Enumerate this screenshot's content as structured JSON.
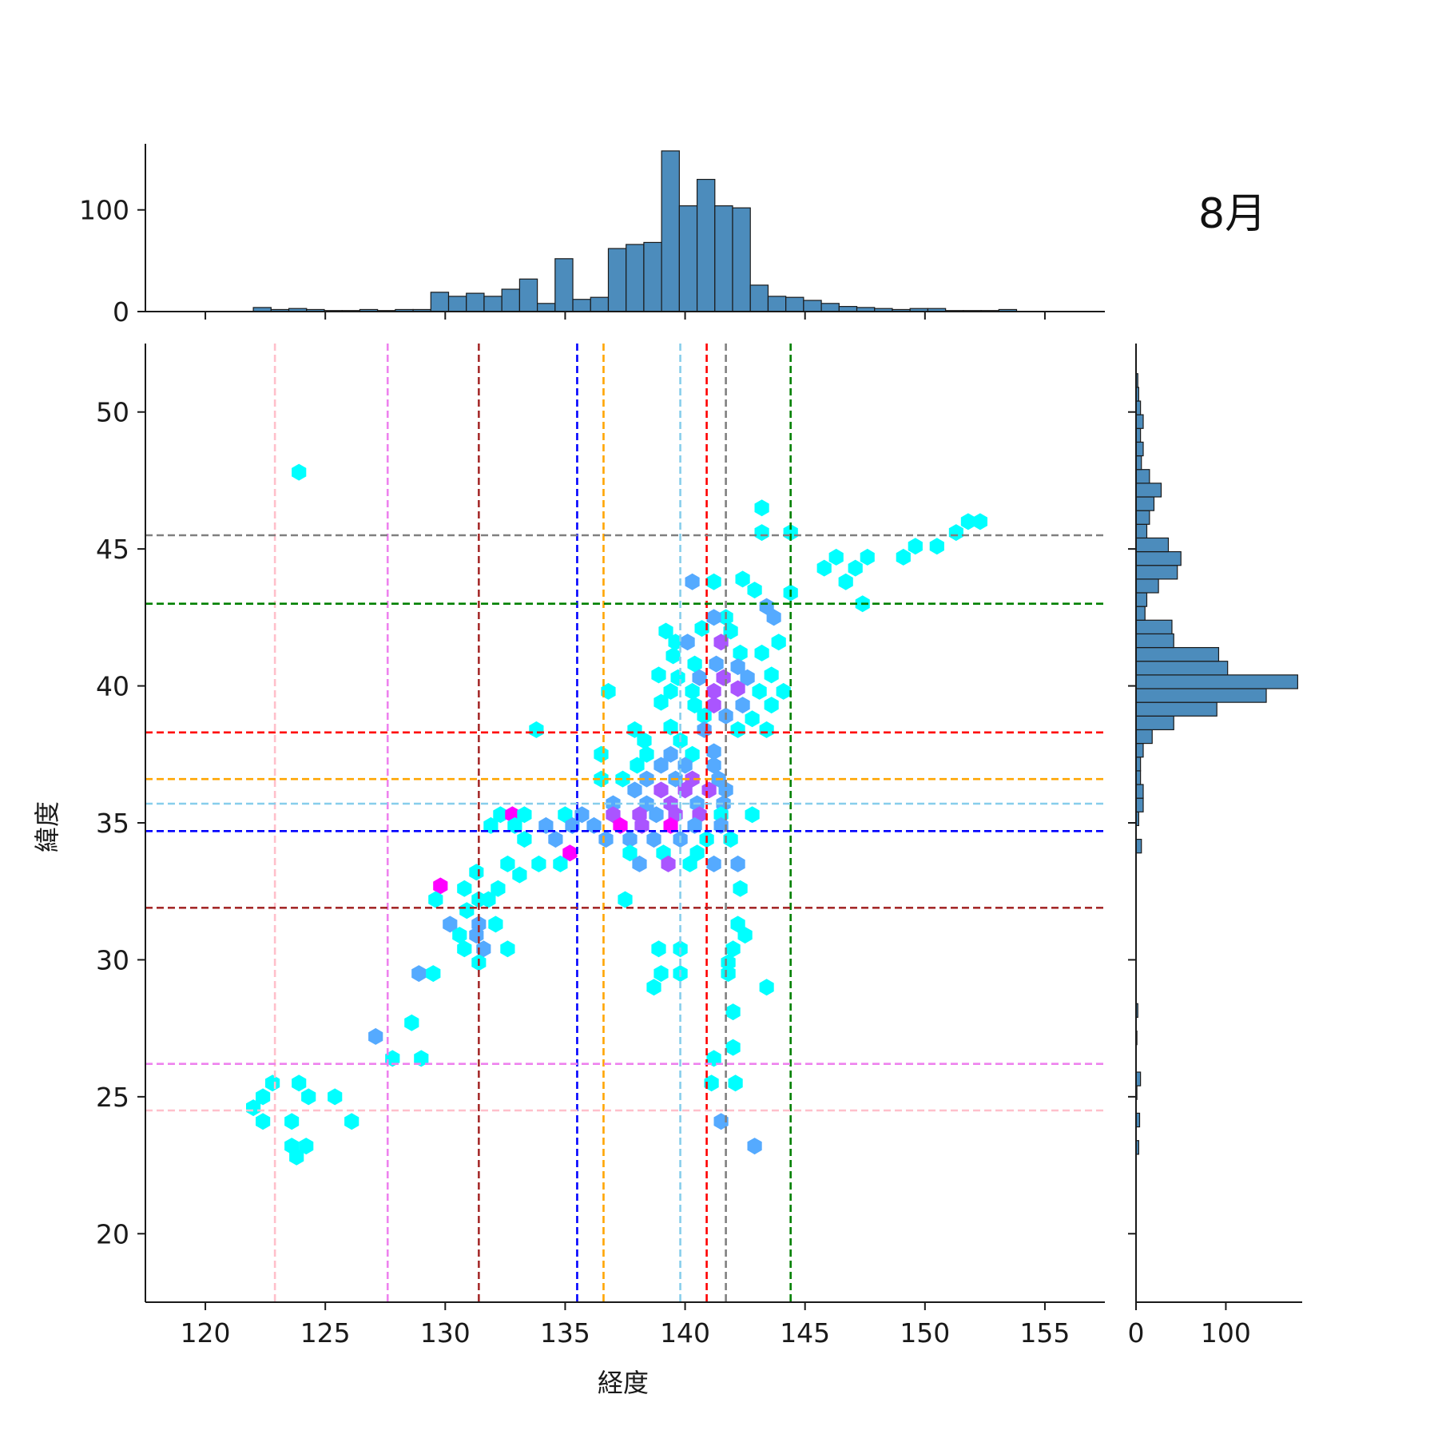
{
  "chart_data": {
    "type": "hexbin-jointplot",
    "title": "8月",
    "xlabel": "経度",
    "ylabel": "緯度",
    "xlim": [
      117.5,
      157.5
    ],
    "ylim": [
      17.5,
      52.5
    ],
    "xticks": [
      "120",
      "125",
      "130",
      "135",
      "140",
      "145",
      "150",
      "155"
    ],
    "yticks": [
      "20",
      "25",
      "30",
      "35",
      "40",
      "45",
      "50"
    ],
    "top_hist": {
      "yticks": [
        "0",
        "100"
      ],
      "ymax": 165,
      "bin_start": 122.0,
      "bin_width": 0.74,
      "counts": [
        4,
        2,
        3,
        2,
        1,
        1,
        2,
        1,
        2,
        2,
        19,
        15,
        18,
        15,
        22,
        32,
        8,
        52,
        12,
        14,
        62,
        66,
        68,
        158,
        104,
        130,
        104,
        102,
        26,
        15,
        14,
        11,
        8,
        5,
        4,
        3,
        2,
        3,
        3,
        1,
        1,
        1,
        2
      ],
      "color": "#4c8cbc"
    },
    "right_hist": {
      "xticks": [
        "0",
        "100"
      ],
      "xmax": 185,
      "bin_start": 22.9,
      "bin_width": 0.5,
      "counts": [
        3,
        0,
        4,
        0,
        1,
        5,
        0,
        0,
        1,
        0,
        2,
        0,
        0,
        0,
        0,
        0,
        0,
        0,
        0,
        0,
        0,
        0,
        6,
        0,
        3,
        8,
        8,
        5,
        5,
        8,
        18,
        42,
        90,
        145,
        180,
        102,
        92,
        42,
        40,
        10,
        12,
        25,
        46,
        50,
        36,
        12,
        15,
        20,
        28,
        15,
        6,
        8,
        5,
        8,
        5,
        3,
        2
      ],
      "color": "#4c8cbc"
    },
    "hexbin": {
      "colormap": [
        "#00ffff",
        "#ff00ff"
      ],
      "bins": [
        [
          123.9,
          47.8,
          0
        ],
        [
          143.2,
          46.5,
          0
        ],
        [
          151.8,
          46.0,
          0
        ],
        [
          152.3,
          46.0,
          0
        ],
        [
          151.3,
          45.6,
          0
        ],
        [
          143.2,
          45.6,
          0
        ],
        [
          144.4,
          45.6,
          0
        ],
        [
          149.6,
          45.1,
          0
        ],
        [
          150.5,
          45.1,
          0
        ],
        [
          149.1,
          44.7,
          0
        ],
        [
          147.6,
          44.7,
          0
        ],
        [
          146.3,
          44.7,
          0
        ],
        [
          145.8,
          44.3,
          0
        ],
        [
          147.1,
          44.3,
          0
        ],
        [
          146.7,
          43.8,
          0
        ],
        [
          142.4,
          43.9,
          0
        ],
        [
          141.2,
          43.8,
          0
        ],
        [
          140.3,
          43.8,
          1
        ],
        [
          142.9,
          43.5,
          0
        ],
        [
          144.4,
          43.4,
          0
        ],
        [
          147.4,
          43.0,
          0
        ],
        [
          143.4,
          42.9,
          1
        ],
        [
          141.7,
          42.5,
          0
        ],
        [
          141.2,
          42.5,
          1
        ],
        [
          143.7,
          42.5,
          1
        ],
        [
          140.7,
          42.1,
          0
        ],
        [
          139.2,
          42.0,
          0
        ],
        [
          141.9,
          42.0,
          0
        ],
        [
          139.6,
          41.6,
          0
        ],
        [
          140.1,
          41.6,
          1
        ],
        [
          141.5,
          41.6,
          2
        ],
        [
          143.9,
          41.6,
          0
        ],
        [
          142.3,
          41.2,
          0
        ],
        [
          139.5,
          41.1,
          0
        ],
        [
          143.2,
          41.2,
          0
        ],
        [
          140.4,
          40.8,
          0
        ],
        [
          141.3,
          40.8,
          1
        ],
        [
          142.2,
          40.7,
          1
        ],
        [
          138.9,
          40.4,
          0
        ],
        [
          139.7,
          40.3,
          0
        ],
        [
          140.6,
          40.3,
          1
        ],
        [
          141.6,
          40.3,
          2
        ],
        [
          142.6,
          40.3,
          1
        ],
        [
          143.6,
          40.4,
          0
        ],
        [
          136.8,
          39.8,
          0
        ],
        [
          139.4,
          39.8,
          0
        ],
        [
          140.3,
          39.8,
          0
        ],
        [
          141.2,
          39.8,
          2
        ],
        [
          142.2,
          39.9,
          2
        ],
        [
          143.1,
          39.8,
          0
        ],
        [
          144.1,
          39.8,
          0
        ],
        [
          139.0,
          39.4,
          0
        ],
        [
          140.4,
          39.3,
          0
        ],
        [
          141.2,
          39.3,
          2
        ],
        [
          142.4,
          39.3,
          1
        ],
        [
          143.6,
          39.3,
          0
        ],
        [
          141.7,
          38.9,
          1
        ],
        [
          140.8,
          38.9,
          0
        ],
        [
          142.8,
          38.8,
          0
        ],
        [
          133.8,
          38.4,
          0
        ],
        [
          137.9,
          38.4,
          0
        ],
        [
          139.4,
          38.5,
          0
        ],
        [
          140.8,
          38.4,
          1
        ],
        [
          142.2,
          38.4,
          0
        ],
        [
          143.4,
          38.4,
          0
        ],
        [
          138.3,
          38.0,
          0
        ],
        [
          139.8,
          38.0,
          0
        ],
        [
          136.5,
          37.5,
          0
        ],
        [
          138.4,
          37.5,
          0
        ],
        [
          139.4,
          37.5,
          1
        ],
        [
          140.3,
          37.5,
          0
        ],
        [
          141.2,
          37.6,
          1
        ],
        [
          138.0,
          37.1,
          0
        ],
        [
          139.0,
          37.1,
          1
        ],
        [
          140.0,
          37.1,
          1
        ],
        [
          141.2,
          37.1,
          1
        ],
        [
          136.5,
          36.6,
          0
        ],
        [
          137.4,
          36.6,
          0
        ],
        [
          138.4,
          36.6,
          1
        ],
        [
          139.6,
          36.6,
          1
        ],
        [
          140.3,
          36.6,
          2
        ],
        [
          141.4,
          36.6,
          1
        ],
        [
          137.9,
          36.2,
          1
        ],
        [
          139.0,
          36.2,
          2
        ],
        [
          140.0,
          36.2,
          2
        ],
        [
          141.0,
          36.2,
          2
        ],
        [
          141.7,
          36.2,
          1
        ],
        [
          137.0,
          35.7,
          1
        ],
        [
          138.4,
          35.7,
          1
        ],
        [
          139.4,
          35.7,
          2
        ],
        [
          140.5,
          35.7,
          1
        ],
        [
          141.6,
          35.7,
          1
        ],
        [
          132.3,
          35.3,
          0
        ],
        [
          132.8,
          35.3,
          3
        ],
        [
          133.3,
          35.3,
          0
        ],
        [
          135.0,
          35.3,
          0
        ],
        [
          135.7,
          35.3,
          1
        ],
        [
          137.0,
          35.3,
          2
        ],
        [
          138.1,
          35.3,
          2
        ],
        [
          138.8,
          35.3,
          1
        ],
        [
          139.6,
          35.3,
          2
        ],
        [
          140.6,
          35.3,
          2
        ],
        [
          141.5,
          35.3,
          0
        ],
        [
          142.8,
          35.3,
          0
        ],
        [
          131.9,
          34.9,
          0
        ],
        [
          132.9,
          34.9,
          0
        ],
        [
          134.2,
          34.9,
          1
        ],
        [
          135.3,
          34.9,
          1
        ],
        [
          136.2,
          34.9,
          1
        ],
        [
          137.3,
          34.9,
          3
        ],
        [
          138.2,
          34.9,
          2
        ],
        [
          139.4,
          34.9,
          3
        ],
        [
          140.4,
          34.9,
          1
        ],
        [
          141.5,
          34.9,
          1
        ],
        [
          133.3,
          34.4,
          0
        ],
        [
          134.6,
          34.4,
          1
        ],
        [
          136.7,
          34.4,
          1
        ],
        [
          137.7,
          34.4,
          1
        ],
        [
          138.7,
          34.4,
          1
        ],
        [
          139.8,
          34.4,
          1
        ],
        [
          140.9,
          34.4,
          0
        ],
        [
          141.9,
          34.4,
          0
        ],
        [
          135.2,
          33.9,
          3
        ],
        [
          137.7,
          33.9,
          0
        ],
        [
          139.1,
          33.9,
          0
        ],
        [
          140.5,
          33.9,
          0
        ],
        [
          132.6,
          33.5,
          0
        ],
        [
          133.9,
          33.5,
          0
        ],
        [
          134.8,
          33.5,
          0
        ],
        [
          138.1,
          33.5,
          1
        ],
        [
          139.3,
          33.5,
          2
        ],
        [
          140.2,
          33.5,
          0
        ],
        [
          141.2,
          33.5,
          1
        ],
        [
          142.2,
          33.5,
          1
        ],
        [
          131.3,
          33.2,
          0
        ],
        [
          133.1,
          33.1,
          0
        ],
        [
          130.8,
          32.6,
          0
        ],
        [
          132.2,
          32.6,
          0
        ],
        [
          129.8,
          32.7,
          3
        ],
        [
          129.6,
          32.2,
          0
        ],
        [
          131.4,
          32.2,
          0
        ],
        [
          131.8,
          32.2,
          0
        ],
        [
          137.5,
          32.2,
          0
        ],
        [
          142.3,
          32.6,
          0
        ],
        [
          130.9,
          31.8,
          0
        ],
        [
          131.4,
          31.3,
          1
        ],
        [
          132.1,
          31.3,
          0
        ],
        [
          130.2,
          31.3,
          1
        ],
        [
          130.6,
          30.9,
          0
        ],
        [
          131.3,
          30.9,
          1
        ],
        [
          142.2,
          31.3,
          0
        ],
        [
          142.5,
          30.9,
          0
        ],
        [
          131.6,
          30.4,
          1
        ],
        [
          132.6,
          30.4,
          0
        ],
        [
          130.8,
          30.4,
          0
        ],
        [
          138.9,
          30.4,
          0
        ],
        [
          139.8,
          30.4,
          0
        ],
        [
          142.0,
          30.4,
          0
        ],
        [
          131.4,
          29.9,
          0
        ],
        [
          141.8,
          29.9,
          0
        ],
        [
          128.9,
          29.5,
          1
        ],
        [
          129.5,
          29.5,
          0
        ],
        [
          139.0,
          29.5,
          0
        ],
        [
          139.8,
          29.5,
          0
        ],
        [
          141.8,
          29.5,
          0
        ],
        [
          138.7,
          29.0,
          0
        ],
        [
          143.4,
          29.0,
          0
        ],
        [
          142.0,
          28.1,
          0
        ],
        [
          127.1,
          27.2,
          1
        ],
        [
          128.6,
          27.7,
          0
        ],
        [
          127.8,
          26.4,
          0
        ],
        [
          129.0,
          26.4,
          0
        ],
        [
          142.0,
          26.8,
          0
        ],
        [
          141.2,
          26.4,
          0
        ],
        [
          122.8,
          25.5,
          0
        ],
        [
          122.4,
          25.0,
          0
        ],
        [
          123.9,
          25.5,
          0
        ],
        [
          124.3,
          25.0,
          0
        ],
        [
          125.4,
          25.0,
          0
        ],
        [
          122.0,
          24.6,
          0
        ],
        [
          122.4,
          24.1,
          0
        ],
        [
          123.6,
          24.1,
          0
        ],
        [
          126.1,
          24.1,
          0
        ],
        [
          141.1,
          25.5,
          0
        ],
        [
          142.1,
          25.5,
          0
        ],
        [
          141.5,
          24.1,
          1
        ],
        [
          123.6,
          23.2,
          0
        ],
        [
          124.2,
          23.2,
          0
        ],
        [
          123.8,
          22.8,
          0
        ],
        [
          142.9,
          23.2,
          1
        ]
      ]
    },
    "vertical_lines": [
      {
        "x": 122.9,
        "color": "#ffc0cb"
      },
      {
        "x": 127.6,
        "color": "#ee82ee"
      },
      {
        "x": 131.4,
        "color": "#a52a2a"
      },
      {
        "x": 135.5,
        "color": "#0000ff"
      },
      {
        "x": 136.6,
        "color": "#ffa500"
      },
      {
        "x": 139.8,
        "color": "#87ceeb"
      },
      {
        "x": 140.9,
        "color": "#ff0000"
      },
      {
        "x": 141.7,
        "color": "#808080"
      },
      {
        "x": 144.4,
        "color": "#008000"
      }
    ],
    "horizontal_lines": [
      {
        "y": 45.5,
        "color": "#808080"
      },
      {
        "y": 43.0,
        "color": "#008000"
      },
      {
        "y": 38.3,
        "color": "#ff0000"
      },
      {
        "y": 36.6,
        "color": "#ffa500"
      },
      {
        "y": 35.7,
        "color": "#87ceeb"
      },
      {
        "y": 34.7,
        "color": "#0000ff"
      },
      {
        "y": 31.9,
        "color": "#a52a2a"
      },
      {
        "y": 26.2,
        "color": "#ee82ee"
      },
      {
        "y": 24.5,
        "color": "#ffc0cb"
      }
    ]
  }
}
